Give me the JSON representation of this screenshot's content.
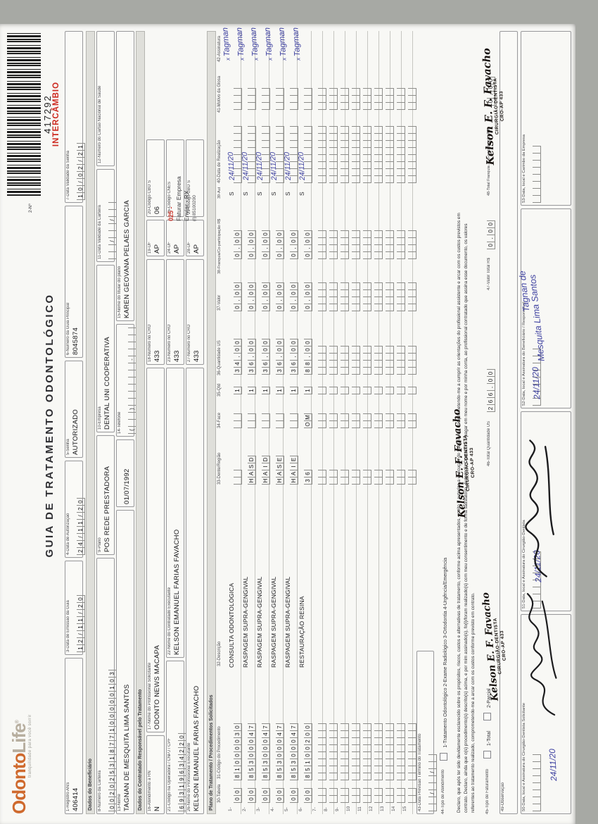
{
  "scan": {
    "background": "#a7a9a4",
    "paper": "#f8f8f5"
  },
  "logo": {
    "word1": "Odonto",
    "word2": "Life",
    "reg": "®",
    "tagline": "tranquilidade para você sorrir",
    "color1": "#cf6a2e",
    "color2": "#b7ae9f"
  },
  "header": {
    "title": "GUIA DE TRATAMENTO ODONTOLÓGICO",
    "number_label": "2-Nº",
    "number": "417292",
    "intercambio": "INTERCÂMBIO",
    "red": "#cd2a20"
  },
  "sections": {
    "beneficiario": "Dados do Beneficiário",
    "contratado": "Dados do Contratado Responsável pelo Tratamento",
    "plano": "Plano de Tratamento / Procedimentos Solicitados"
  },
  "fields": {
    "f1": {
      "label": "1-Registro ANS",
      "value": "406414"
    },
    "f3": {
      "label": "3-Data de Emissão da Guia",
      "value": "12/11/20"
    },
    "f4": {
      "label": "4-Data de Autorização",
      "value": "24/11/20"
    },
    "f5": {
      "label": "5-Senha",
      "value": "AUTORIZADO"
    },
    "f6": {
      "label": "6-Número da Guia Principal",
      "value": "8045874"
    },
    "f7": {
      "label": "7-Data Validade da Senha",
      "value": "10/02/21"
    },
    "f8": {
      "label": "8-Número da Carteira",
      "value": "00202531877100000103"
    },
    "f9": {
      "label": "9-Plano",
      "value": "POS REDE PRESTADORA"
    },
    "f10": {
      "label": "10-Empresa",
      "value": "DENTAL UNI COOPERATIVA"
    },
    "f11": {
      "label": "11-Data Validade da Carteira",
      "value": "  /  /  "
    },
    "f12": {
      "label": "12-Número do Cartão Nacional de Saúde",
      "value": ""
    },
    "f13": {
      "label": "13-Nome",
      "value": "TAGNAN DE MESQUITA LIMA SANTOS"
    },
    "f13b": {
      "label": "",
      "value": "01/07/1992"
    },
    "f14": {
      "label": "14-Telefone",
      "value": "(  )      -    "
    },
    "f15": {
      "label": "15-Nome do titular do plano",
      "value": "KAREN GEOVANA PELAES GARCIA"
    },
    "f16": {
      "label": "16-Atendimento a RN",
      "value": "N"
    },
    "f17": {
      "label": "17-Nome do Profissional Solicitante",
      "value": "ODONTO NEWS MACAPA"
    },
    "f18": {
      "label": "18-Número no CRO",
      "value": "433"
    },
    "f19": {
      "label": "19-UF",
      "value": "AP"
    },
    "f20": {
      "label": "20-Código CBO S",
      "value": "06"
    },
    "f21": {
      "label": "21-Código na Operadora / CNPJ / CPF",
      "value": "69319634220"
    },
    "f22": {
      "label": "22-Nome do Contratado Executante",
      "value": "KELSON EMANUEL FARIAS FAVACHO"
    },
    "f23": {
      "label": "23-Número no CRO",
      "value": "433"
    },
    "f24": {
      "label": "24-UF",
      "value": "AP"
    },
    "f25": {
      "label": "25-Código CNES",
      "value": ""
    },
    "f26": {
      "label": "26-Nome do Profissional Executante",
      "value": "KELSON EMANUEL FARIAS FAVACHO"
    },
    "f27": {
      "label": "27-Número no CRO",
      "value": "433"
    },
    "f28": {
      "label": "28-UF",
      "value": "AP"
    },
    "f29": {
      "label": "29-Código CBO S",
      "value": ""
    }
  },
  "annotation": {
    "code": "025 -",
    "line2": "Faturar Empresa",
    "line3": "Enviar - RX",
    "line4": "(I) 85100200",
    "code_color": "#c8342a"
  },
  "table": {
    "headers": {
      "h30": "30-Tabela",
      "h31": "31-Código do Procedimento",
      "h32": "32-Descrição",
      "h33": "33-Dente/Região",
      "h34": "34-Face",
      "h35": "35-Qtd",
      "h36": "36-Quantidade US",
      "h37": "37-Valor",
      "h38": "38-Franquia/Co-participação R$",
      "h39": "39-Aut",
      "h40": "40-Data de Realização",
      "h41": "41-Motivo da Glosa",
      "h42": "42-Assinatura"
    },
    "rows": [
      {
        "n": "1-",
        "tabela": "00",
        "codigo": "81000030",
        "descricao": "CONSULTA ODONTOLÓGICA",
        "dente": "",
        "face": "",
        "qtd": "1",
        "us": "34,00",
        "valor": "0,00",
        "franquia": "0,00",
        "aut": "S",
        "data": "24/11/20",
        "assinatura": "Tagman"
      },
      {
        "n": "2-",
        "tabela": "00",
        "codigo": "85300047",
        "descricao": "RASPAGEM SUPRA-GENGIVAL",
        "dente": "HASD",
        "face": "",
        "qtd": "1",
        "us": "36,00",
        "valor": "0,00",
        "franquia": "0,00",
        "aut": "S",
        "data": "24/11/20",
        "assinatura": "Tagman"
      },
      {
        "n": "3-",
        "tabela": "00",
        "codigo": "85300047",
        "descricao": "RASPAGEM SUPRA-GENGIVAL",
        "dente": "HAID",
        "face": "",
        "qtd": "1",
        "us": "36,00",
        "valor": "0,00",
        "franquia": "0,00",
        "aut": "S",
        "data": "24/11/20",
        "assinatura": "Tagman"
      },
      {
        "n": "4-",
        "tabela": "00",
        "codigo": "85300047",
        "descricao": "RASPAGEM SUPRA-GENGIVAL",
        "dente": "HASE",
        "face": "",
        "qtd": "1",
        "us": "36,00",
        "valor": "0,00",
        "franquia": "0,00",
        "aut": "S",
        "data": "24/11/20",
        "assinatura": "Tagman"
      },
      {
        "n": "5-",
        "tabela": "00",
        "codigo": "85300047",
        "descricao": "RASPAGEM SUPRA-GENGIVAL",
        "dente": "HAIE",
        "face": "",
        "qtd": "1",
        "us": "36,00",
        "valor": "0,00",
        "franquia": "0,00",
        "aut": "S",
        "data": "24/11/20",
        "assinatura": "Tagman"
      },
      {
        "n": "6-",
        "tabela": "00",
        "codigo": "85100200",
        "descricao": "RESTAURAÇÃO RESINA",
        "dente": "36",
        "face": "OM",
        "qtd": "1",
        "us": "88,00",
        "valor": "0,00",
        "franquia": "0,00",
        "aut": "S",
        "data": "24/11/20",
        "assinatura": "Tagman"
      }
    ],
    "empty_rows": [
      "7-",
      "8-",
      "9-",
      "10",
      "11",
      "12",
      "13",
      "14",
      "15"
    ]
  },
  "footer": {
    "f43": {
      "label": "43-Data Previsão Término do Tratamento",
      "value": "  /  /  "
    },
    "f44": {
      "label": "44-Tipo de Atendimento",
      "options": "1-Tratamento Odontológico    2-Exame Radiológico    3-Ortodontia    4-Urgência/Emergência"
    },
    "declaration": [
      "Declaro, que após ter sido devidamente esclarecido sobre os propósitos, riscos, custos e alternativas de tratamento, conforme acima apresentados, aceito e autorizo a execução do tratamento, comprometendo-me a cumprir as orientações do profissional assistente e arcar com os custos previstos em",
      "contrato. Declaro, ainda que o(s) procedimento(s) descrito(s) acima, e por mim assinado(s), fo(i)/foram realizado(s) com meu consentimento e de forma satisfatória, Autorizo a Operadora a pagar em meu nome e por minha conta, ao profissional contratado que assina esse documento, os valores",
      "referentes ao tratamento realizado, comprometendo-me a arcar com os custos conforme previsto em contrato."
    ],
    "f45": {
      "label": "45-Tipo de Faturamento",
      "opt1": "1-Total",
      "opt2": "2-Parcial"
    },
    "f46": {
      "label": "46-Total Quantidade US",
      "value": "266,00"
    },
    "f47": {
      "label": "47-Valor Total R$",
      "value": "0,00"
    },
    "f48": {
      "label": "48-Total Franquia / Co-participação R$",
      "value": "0,00"
    },
    "f49": {
      "label": "49-Observação"
    },
    "f50": {
      "label": "50-Data, local e Assinatura do Cirurgião-Dentista Solicitante"
    },
    "f51": {
      "label": "51-Data, local e Assinatura do Cirurgião-Dentista"
    },
    "f52": {
      "label": "52-Data, local e Assinatura do Beneficiário / Responsável"
    },
    "f53": {
      "label": "53-Data, local e Carimbo da Empresa"
    }
  },
  "stamp": {
    "name": "Kelson E. F. Favacho",
    "role": "CIRURGIÃO-DENTISTA",
    "cro": "CRO-AP 433"
  },
  "handwriting": {
    "ink": "#3c3f9f",
    "sig_mark": "x",
    "date_50": "24/11/20",
    "date_51": "24/11/20",
    "date_52": "24/11/20",
    "beneficiary_line1": "Tagnan de",
    "beneficiary_line2": "Mesquita Lima Santos"
  }
}
